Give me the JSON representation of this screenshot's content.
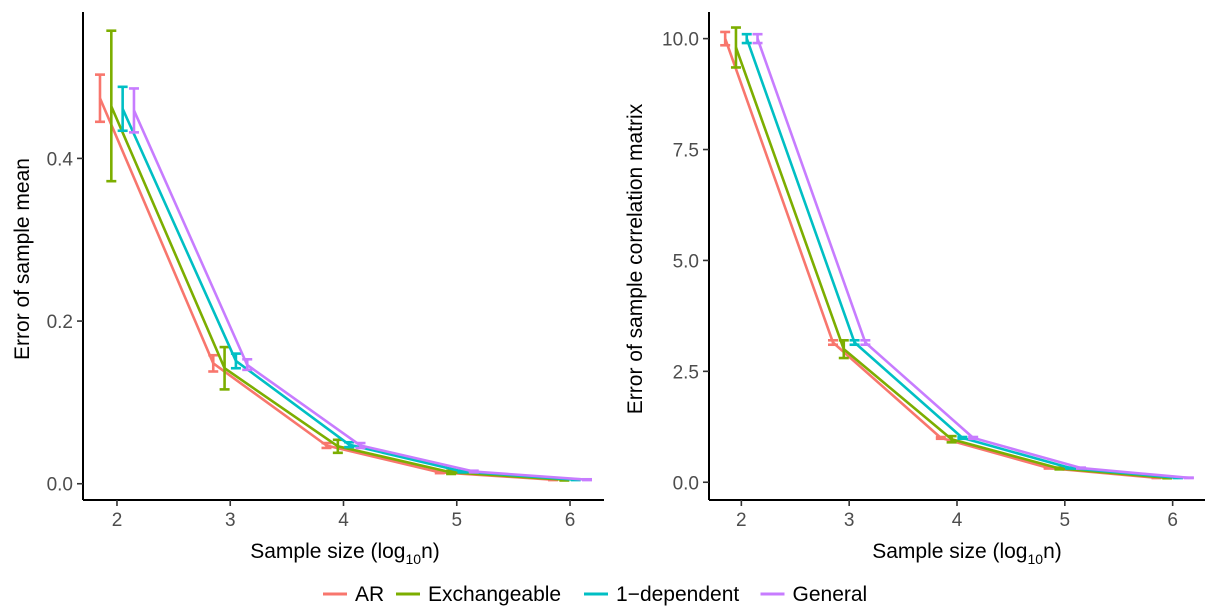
{
  "chart_data": [
    {
      "type": "line",
      "xlabel": "Sample size (log",
      "xlabel_sub": "10",
      "xlabel_suffix": "n)",
      "ylabel": "Error of sample mean",
      "xlim": [
        1.7,
        6.3
      ],
      "ylim": [
        -0.02,
        0.58
      ],
      "xticks": [
        2,
        3,
        4,
        5,
        6
      ],
      "xtick_labels": [
        "2",
        "3",
        "4",
        "5",
        "6"
      ],
      "yticks": [
        0.0,
        0.2,
        0.4
      ],
      "ytick_labels": [
        "0.0",
        "0.2",
        "0.4"
      ],
      "grid": false,
      "x": [
        2,
        3,
        4,
        5,
        6
      ],
      "series": [
        {
          "name": "AR",
          "values": [
            0.474,
            0.148,
            0.047,
            0.014,
            0.005
          ],
          "lower": [
            0.445,
            0.138,
            0.044,
            0.013,
            0.0045
          ],
          "upper": [
            0.503,
            0.158,
            0.05,
            0.015,
            0.0055
          ]
        },
        {
          "name": "Exchangeable",
          "values": [
            0.464,
            0.142,
            0.046,
            0.014,
            0.005
          ],
          "lower": [
            0.372,
            0.116,
            0.038,
            0.012,
            0.004
          ],
          "upper": [
            0.557,
            0.168,
            0.054,
            0.016,
            0.006
          ]
        },
        {
          "name": "1-dependent",
          "values": [
            0.461,
            0.151,
            0.048,
            0.015,
            0.005
          ],
          "lower": [
            0.434,
            0.142,
            0.045,
            0.014,
            0.0045
          ],
          "upper": [
            0.488,
            0.16,
            0.051,
            0.016,
            0.0055
          ]
        },
        {
          "name": "General",
          "values": [
            0.459,
            0.146,
            0.047,
            0.015,
            0.005
          ],
          "lower": [
            0.432,
            0.14,
            0.044,
            0.014,
            0.0045
          ],
          "upper": [
            0.486,
            0.153,
            0.05,
            0.016,
            0.0055
          ]
        }
      ]
    },
    {
      "type": "line",
      "xlabel": "Sample size (log",
      "xlabel_sub": "10",
      "xlabel_suffix": "n)",
      "ylabel": "Error of sample correlation matrix",
      "xlim": [
        1.7,
        6.3
      ],
      "ylim": [
        -0.4,
        10.6
      ],
      "xticks": [
        2,
        3,
        4,
        5,
        6
      ],
      "xtick_labels": [
        "2",
        "3",
        "4",
        "5",
        "6"
      ],
      "yticks": [
        0.0,
        2.5,
        5.0,
        7.5,
        10.0
      ],
      "ytick_labels": [
        "0.0",
        "2.5",
        "5.0",
        "7.5",
        "10.0"
      ],
      "grid": false,
      "x": [
        2,
        3,
        4,
        5,
        6
      ],
      "series": [
        {
          "name": "AR",
          "values": [
            10.0,
            3.15,
            1.0,
            0.32,
            0.1
          ],
          "lower": [
            9.85,
            3.1,
            0.98,
            0.31,
            0.095
          ],
          "upper": [
            10.15,
            3.2,
            1.02,
            0.33,
            0.105
          ]
        },
        {
          "name": "Exchangeable",
          "values": [
            9.8,
            3.0,
            0.97,
            0.31,
            0.1
          ],
          "lower": [
            9.35,
            2.8,
            0.9,
            0.29,
            0.09
          ],
          "upper": [
            10.25,
            3.2,
            1.04,
            0.33,
            0.11
          ]
        },
        {
          "name": "1-dependent",
          "values": [
            10.0,
            3.15,
            1.0,
            0.32,
            0.1
          ],
          "lower": [
            9.9,
            3.1,
            0.98,
            0.31,
            0.095
          ],
          "upper": [
            10.1,
            3.2,
            1.02,
            0.33,
            0.105
          ]
        },
        {
          "name": "General",
          "values": [
            10.0,
            3.15,
            1.0,
            0.32,
            0.1
          ],
          "lower": [
            9.9,
            3.1,
            0.98,
            0.31,
            0.095
          ],
          "upper": [
            10.1,
            3.2,
            1.02,
            0.33,
            0.105
          ]
        }
      ]
    }
  ],
  "legend": {
    "placement": "bottom",
    "items": [
      {
        "label": "AR",
        "color": "#F8766D"
      },
      {
        "label": "Exchangeable",
        "color": "#7CAE00"
      },
      {
        "label": "1−dependent",
        "color": "#00BFC4"
      },
      {
        "label": "General",
        "color": "#C77CFF"
      }
    ]
  },
  "colors": {
    "AR": "#F8766D",
    "Exchangeable": "#7CAE00",
    "1-dependent": "#00BFC4",
    "General": "#C77CFF"
  }
}
